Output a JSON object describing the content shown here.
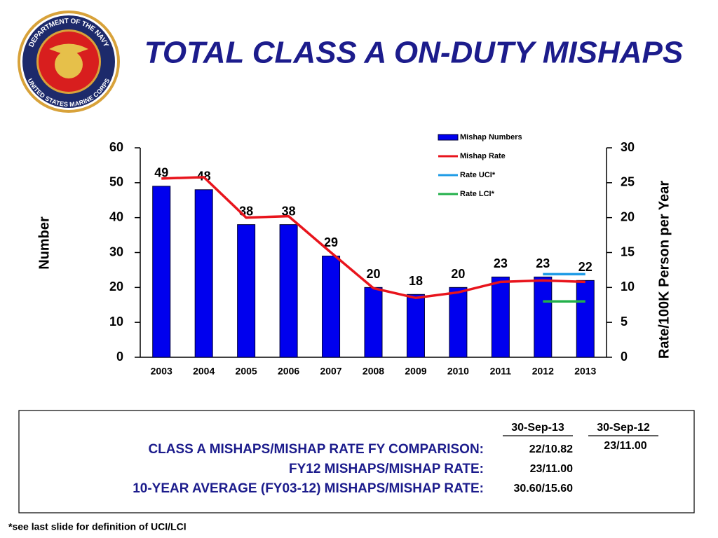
{
  "logo": {
    "top": "DEPARTMENT OF THE NAVY",
    "bottom": "UNITED STATES MARINE CORPS"
  },
  "chart_data": {
    "type": "bar",
    "title": "TOTAL CLASS A ON-DUTY  MISHAPS",
    "categories": [
      "2003",
      "2004",
      "2005",
      "2006",
      "2007",
      "2008",
      "2009",
      "2010",
      "2011",
      "2012",
      "2013"
    ],
    "series": [
      {
        "name": "Mishap Numbers",
        "type": "bar",
        "color": "#0000ee",
        "values": [
          49,
          48,
          38,
          38,
          29,
          20,
          18,
          20,
          23,
          23,
          22
        ]
      },
      {
        "name": "Mishap Rate",
        "type": "line",
        "axis": "y2",
        "color": "#e8141c",
        "values": [
          25.6,
          25.8,
          20.0,
          20.2,
          15.0,
          9.9,
          8.5,
          9.3,
          10.8,
          11.0,
          10.8
        ]
      },
      {
        "name": "Rate UCI*",
        "type": "line",
        "axis": "y2",
        "color": "#1e9be6",
        "values": [
          null,
          null,
          null,
          null,
          null,
          null,
          null,
          null,
          null,
          11.9,
          11.9
        ]
      },
      {
        "name": "Rate LCI*",
        "type": "line",
        "axis": "y2",
        "color": "#22b04a",
        "values": [
          null,
          null,
          null,
          null,
          null,
          null,
          null,
          null,
          null,
          8.0,
          8.0
        ]
      }
    ],
    "ylabel": "Number",
    "y2label": "Rate/100K Person per Year",
    "ylim": [
      0,
      60
    ],
    "yticks": [
      0,
      10,
      20,
      30,
      40,
      50,
      60
    ],
    "y2lim": [
      0,
      30
    ],
    "y2ticks": [
      0,
      5,
      10,
      15,
      20,
      25,
      30
    ],
    "legend": "top-right"
  },
  "table": {
    "columns": [
      "30-Sep-13",
      "30-Sep-12"
    ],
    "rows": [
      {
        "label": "CLASS A MISHAPS/MISHAP RATE FY COMPARISON:",
        "cells": [
          "22/10.82",
          "23/11.00"
        ]
      },
      {
        "label": "FY12 MISHAPS/MISHAP RATE:",
        "cells": [
          "23/11.00"
        ]
      },
      {
        "label": "10-YEAR AVERAGE (FY03-12) MISHAPS/MISHAP RATE:",
        "cells": [
          "30.60/15.60"
        ]
      }
    ]
  },
  "footnote": "*see last slide for definition of UCI/LCI"
}
